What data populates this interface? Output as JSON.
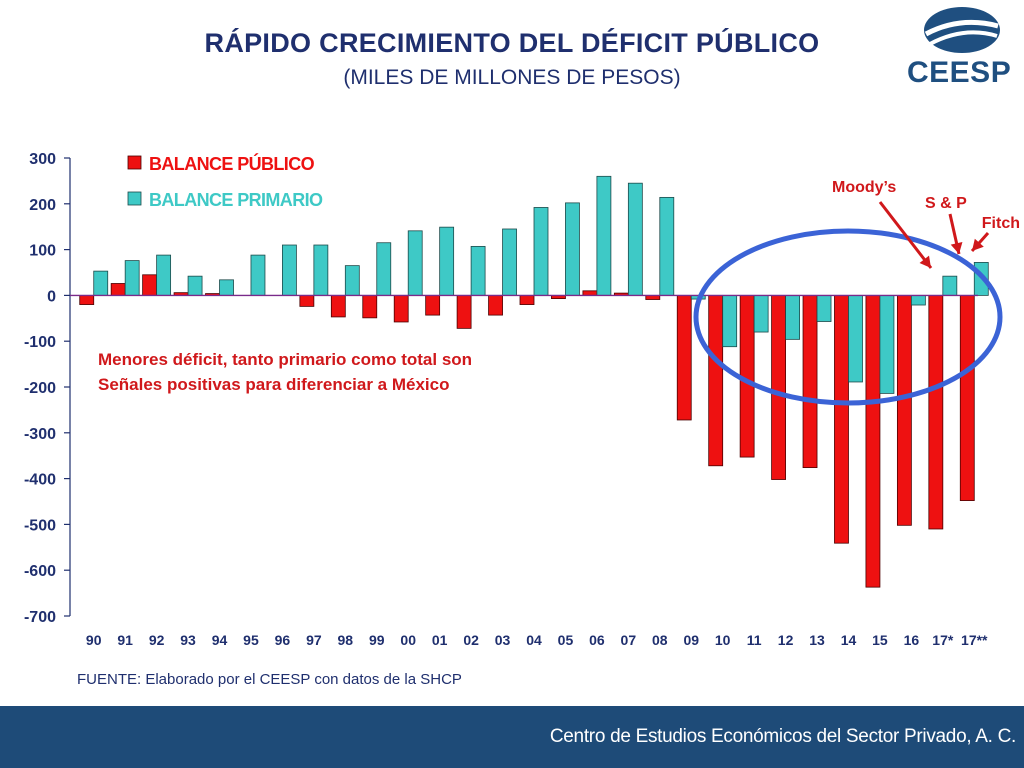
{
  "header": {
    "title": "RÁPIDO CRECIMIENTO DEL DÉFICIT PÚBLICO",
    "subtitle": "(MILES DE MILLONES DE PESOS)"
  },
  "logo": {
    "text": "CEESP",
    "icon": "ceesp-globe-icon",
    "color": "#1f4f80"
  },
  "chart_data": {
    "type": "bar",
    "categories": [
      "90",
      "91",
      "92",
      "93",
      "94",
      "95",
      "96",
      "97",
      "98",
      "99",
      "00",
      "01",
      "02",
      "03",
      "04",
      "05",
      "06",
      "07",
      "08",
      "09",
      "10",
      "11",
      "12",
      "13",
      "14",
      "15",
      "16",
      "17*",
      "17**"
    ],
    "series": [
      {
        "name": "BALANCE PÚBLICO",
        "color": "#ee1111",
        "values": [
          -20,
          26,
          45,
          6,
          4,
          null,
          null,
          -24,
          -47,
          -49,
          -58,
          -43,
          -72,
          -43,
          -20,
          -7,
          10,
          5,
          -9,
          -272,
          -372,
          -353,
          -402,
          -376,
          -541,
          -637,
          -502,
          -510,
          -448
        ]
      },
      {
        "name": "BALANCE PRIMARIO",
        "color": "#3ec9c6",
        "values": [
          53,
          76,
          88,
          42,
          34,
          88,
          110,
          110,
          65,
          115,
          141,
          149,
          107,
          145,
          192,
          202,
          260,
          245,
          214,
          -8,
          -112,
          -80,
          -96,
          -57,
          -189,
          -214,
          -21,
          42,
          72
        ]
      }
    ],
    "ylim": [
      -700,
      300
    ],
    "yticks": [
      300,
      200,
      100,
      0,
      -100,
      -200,
      -300,
      -400,
      -500,
      -600,
      -700
    ],
    "legend_position": "top-left",
    "grid": false,
    "annotation": {
      "line1": "Menores déficit, tanto primario como total son",
      "line2": "Señales positivas para diferenciar a México",
      "color": "#d0181b"
    },
    "ratings": [
      {
        "label": "Moody’s",
        "category": "17*"
      },
      {
        "label": "S & P",
        "category": "17**"
      },
      {
        "label": "Fitch",
        "category": "17**"
      }
    ],
    "highlight_ellipse_color": "#3b63d6"
  },
  "source": {
    "text": "FUENTE: Elaborado por el CEESP con datos de la SHCP"
  },
  "footer": {
    "text": "Centro de Estudios Económicos del Sector Privado, A. C.",
    "background": "#1e4b78"
  }
}
